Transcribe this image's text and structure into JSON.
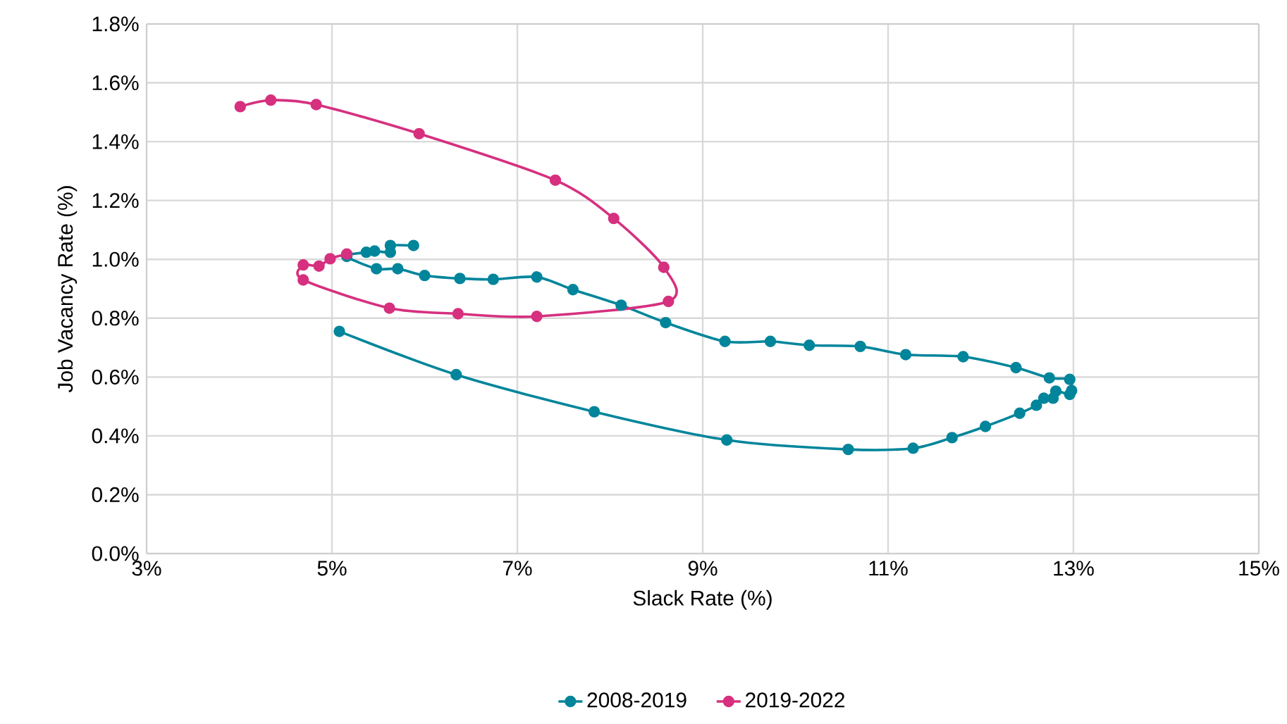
{
  "chart_data": {
    "type": "line",
    "xlabel": "Slack Rate (%)",
    "ylabel": "Job Vacancy Rate (%)",
    "xlim": [
      3,
      15
    ],
    "ylim": [
      0,
      1.8
    ],
    "xticks": [
      {
        "value": 3,
        "label": "3%"
      },
      {
        "value": 5,
        "label": "5%"
      },
      {
        "value": 7,
        "label": "7%"
      },
      {
        "value": 9,
        "label": "9%"
      },
      {
        "value": 11,
        "label": "11%"
      },
      {
        "value": 13,
        "label": "13%"
      },
      {
        "value": 15,
        "label": "15%"
      }
    ],
    "yticks": [
      {
        "value": 0,
        "label": "0.0%"
      },
      {
        "value": 0.2,
        "label": "0.2%"
      },
      {
        "value": 0.4,
        "label": "0.4%"
      },
      {
        "value": 0.6,
        "label": "0.6%"
      },
      {
        "value": 0.8,
        "label": "0.8%"
      },
      {
        "value": 1.0,
        "label": "1.0%"
      },
      {
        "value": 1.2,
        "label": "1.2%"
      },
      {
        "value": 1.4,
        "label": "1.4%"
      },
      {
        "value": 1.6,
        "label": "1.6%"
      },
      {
        "value": 1.8,
        "label": "1.8%"
      }
    ],
    "grid": true,
    "legend": "bottom",
    "marker": "circle",
    "line_style": "solid",
    "series": [
      {
        "name": "2008-2019",
        "color": "#00859b",
        "x": [
          5.08,
          6.34,
          7.83,
          9.26,
          10.57,
          11.27,
          11.69,
          12.05,
          12.42,
          12.6,
          12.68,
          12.78,
          12.81,
          12.96,
          12.98,
          12.96,
          12.74,
          12.38,
          11.81,
          11.19,
          10.7,
          10.15,
          9.73,
          9.24,
          8.6,
          8.12,
          7.6,
          7.21,
          6.74,
          6.38,
          6.0,
          5.71,
          5.48,
          5.16,
          5.37,
          5.46,
          5.63,
          5.63,
          5.88
        ],
        "values": [
          0.755,
          0.608,
          0.482,
          0.386,
          0.354,
          0.358,
          0.394,
          0.432,
          0.477,
          0.504,
          0.528,
          0.528,
          0.552,
          0.541,
          0.554,
          0.592,
          0.597,
          0.632,
          0.669,
          0.676,
          0.704,
          0.708,
          0.721,
          0.721,
          0.785,
          0.844,
          0.897,
          0.94,
          0.932,
          0.935,
          0.945,
          0.968,
          0.968,
          1.01,
          1.024,
          1.028,
          1.024,
          1.047,
          1.047
        ]
      },
      {
        "name": "2019-2022",
        "color": "#d6307f",
        "x": [
          5.16,
          4.98,
          4.86,
          4.69,
          4.69,
          5.62,
          6.36,
          7.21,
          8.63,
          8.58,
          8.04,
          7.41,
          5.94,
          4.83,
          4.34,
          4.01
        ],
        "values": [
          1.018,
          1.002,
          0.977,
          0.981,
          0.93,
          0.834,
          0.815,
          0.806,
          0.857,
          0.973,
          1.139,
          1.269,
          1.427,
          1.526,
          1.541,
          1.519
        ]
      }
    ]
  }
}
